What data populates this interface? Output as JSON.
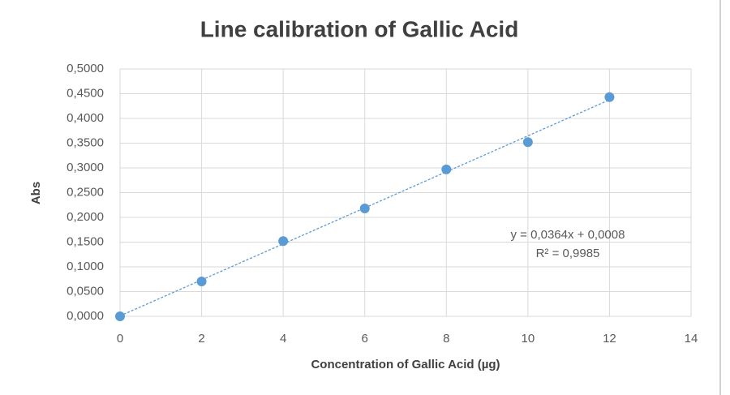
{
  "chart_data": {
    "type": "scatter",
    "title": "Line calibration of Gallic Acid",
    "x_label": "Concentration of Gallic Acid (µg)",
    "y_label": "Abs",
    "x": [
      0,
      2,
      4,
      6,
      8,
      10,
      12
    ],
    "values": [
      0.0,
      0.0705,
      0.152,
      0.218,
      0.297,
      0.352,
      0.443
    ],
    "color": "#5b9bd5",
    "xlim": [
      0,
      14
    ],
    "xticks": [
      0,
      2,
      4,
      6,
      8,
      10,
      12,
      14
    ],
    "ylim": [
      0,
      0.5
    ],
    "yticks": [
      {
        "value": 0,
        "label": "0,0000"
      },
      {
        "value": 0.05,
        "label": "0,0500"
      },
      {
        "value": 0.1,
        "label": "0,1000"
      },
      {
        "value": 0.15,
        "label": "0,1500"
      },
      {
        "value": 0.2,
        "label": "0,2000"
      },
      {
        "value": 0.25,
        "label": "0,2500"
      },
      {
        "value": 0.3,
        "label": "0,3000"
      },
      {
        "value": 0.35,
        "label": "0,3500"
      },
      {
        "value": 0.4,
        "label": "0,4000"
      },
      {
        "value": 0.45,
        "label": "0,4500"
      },
      {
        "value": 0.5,
        "label": "0,5000"
      }
    ],
    "grid": true,
    "trendline": {
      "slope": 0.0364,
      "intercept": 0.0008,
      "equation": "y = 0,0364x + 0,0008",
      "r2": "R² = 0,9985"
    }
  }
}
